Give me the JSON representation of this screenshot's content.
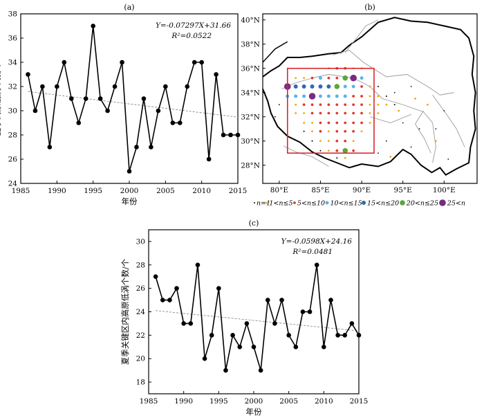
{
  "chart_data": [
    {
      "panel": "(a)",
      "type": "line",
      "ylabel": "夏季高原低涡个数/个",
      "xlabel": "年份",
      "xlim": [
        1985,
        2015
      ],
      "ylim": [
        24,
        38
      ],
      "xticks": [
        1985,
        1990,
        1995,
        2000,
        2005,
        2010,
        2015
      ],
      "yticks": [
        24,
        26,
        28,
        30,
        32,
        34,
        36,
        38
      ],
      "x": [
        1986,
        1987,
        1988,
        1989,
        1990,
        1991,
        1992,
        1993,
        1994,
        1995,
        1996,
        1997,
        1998,
        1999,
        2000,
        2001,
        2002,
        2003,
        2004,
        2005,
        2006,
        2007,
        2008,
        2009,
        2010,
        2011,
        2012,
        2013,
        2014,
        2015
      ],
      "values": [
        33,
        30,
        32,
        27,
        32,
        34,
        31,
        29,
        31,
        37,
        31,
        30,
        32,
        34,
        25,
        27,
        31,
        27,
        30,
        32,
        29,
        29,
        32,
        34,
        34,
        26,
        33,
        28,
        28,
        28
      ],
      "trend": {
        "slope": -0.07297,
        "intercept": 31.66
      },
      "equation": "Y=-0.07297X+31.66",
      "r2": "R²=0.0522"
    },
    {
      "panel": "(b)",
      "type": "scatter",
      "xticks": [
        "80°E",
        "85°E",
        "90°E",
        "95°E",
        "100°E"
      ],
      "yticks": [
        "28°N",
        "30°N",
        "32°N",
        "34°N",
        "36°N",
        "38°N",
        "40°N"
      ],
      "xlim": [
        78,
        104
      ],
      "ylim": [
        26.5,
        40.5
      ],
      "legend": [
        {
          "label": "n=1",
          "color": "#000000",
          "size": 1
        },
        {
          "label": "1<n≤5",
          "color": "#f0a500",
          "size": 1.5
        },
        {
          "label": "5<n≤10",
          "color": "#e03a2e",
          "size": 2.2
        },
        {
          "label": "10<n≤15",
          "color": "#5ab4e6",
          "size": 2.8
        },
        {
          "label": "15<n≤20",
          "color": "#2e6bb0",
          "size": 3.4
        },
        {
          "label": "20<n≤25",
          "color": "#58a83a",
          "size": 4
        },
        {
          "label": "25<n",
          "color": "#7a2a82",
          "size": 5
        }
      ],
      "key_region": {
        "lon": [
          81,
          91.5
        ],
        "lat": [
          29,
          36
        ]
      }
    },
    {
      "panel": "(c)",
      "type": "line",
      "ylabel": "夏季关键区内高原低涡个数/个",
      "xlabel": "年份",
      "xlim": [
        1985,
        2015
      ],
      "ylim": [
        17,
        31
      ],
      "xticks": [
        1985,
        1990,
        1995,
        2000,
        2005,
        2010,
        2015
      ],
      "yticks": [
        18,
        20,
        22,
        24,
        26,
        28,
        30
      ],
      "x": [
        1986,
        1987,
        1988,
        1989,
        1990,
        1991,
        1992,
        1993,
        1994,
        1995,
        1996,
        1997,
        1998,
        1999,
        2000,
        2001,
        2002,
        2003,
        2004,
        2005,
        2006,
        2007,
        2008,
        2009,
        2010,
        2011,
        2012,
        2013,
        2014,
        2015
      ],
      "values": [
        27,
        25,
        25,
        26,
        23,
        23,
        28,
        20,
        22,
        26,
        19,
        22,
        21,
        23,
        21,
        19,
        25,
        23,
        25,
        22,
        21,
        24,
        24,
        28,
        21,
        25,
        22,
        22,
        23,
        22
      ],
      "trend": {
        "slope": -0.0598,
        "intercept": 24.16
      },
      "equation": "Y=-0.0598X+24.16",
      "r2": "R²=0.0481"
    }
  ]
}
